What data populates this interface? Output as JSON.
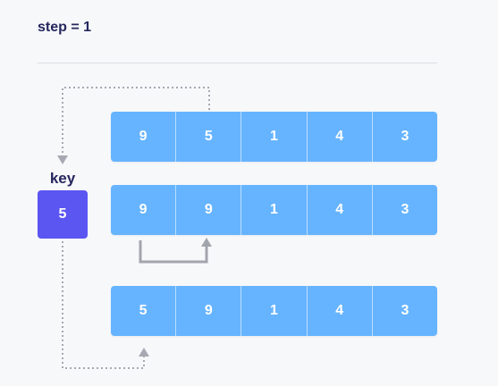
{
  "header": {
    "title": "step = 1"
  },
  "key": {
    "label": "key",
    "value": "5"
  },
  "arrays": [
    {
      "name": "initial-array",
      "cells": [
        "9",
        "5",
        "1",
        "4",
        "3"
      ]
    },
    {
      "name": "shifted-array",
      "cells": [
        "9",
        "9",
        "1",
        "4",
        "3"
      ]
    },
    {
      "name": "sorted-array",
      "cells": [
        "5",
        "9",
        "1",
        "4",
        "3"
      ]
    }
  ],
  "colors": {
    "cell": "#66b4ff",
    "key": "#5b55f2",
    "dotted_arrow": "#a7a9b2",
    "solid_arrow": "#a3a5ad"
  }
}
